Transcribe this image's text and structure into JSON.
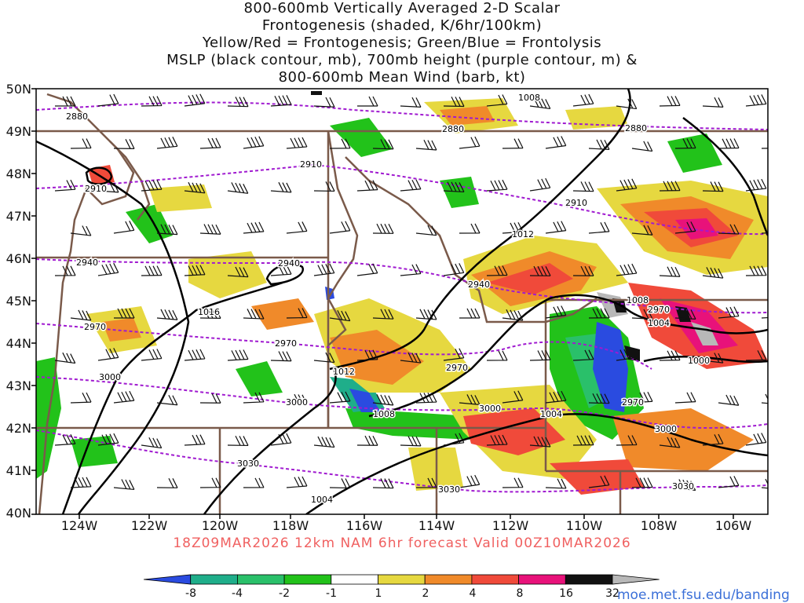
{
  "title_lines": [
    "800-600mb Vertically Averaged 2-D Scalar",
    "Frontogenesis (shaded, K/6hr/100km)",
    "Yellow/Red = Frontogenesis;  Green/Blue = Frontolysis",
    "MSLP (black contour, mb), 700mb height (purple contour, m) &",
    "800-600mb Mean Wind (barb, kt)"
  ],
  "lat_labels": [
    "50N",
    "49N",
    "48N",
    "47N",
    "46N",
    "45N",
    "44N",
    "43N",
    "42N",
    "41N",
    "40N"
  ],
  "lon_labels": [
    "124W",
    "122W",
    "120W",
    "118W",
    "116W",
    "114W",
    "112W",
    "110W",
    "108W",
    "106W"
  ],
  "footer": "18Z09MAR2026 12km NAM 6hr forecast Valid 00Z10MAR2026",
  "colorbar": {
    "labels": [
      "-8",
      "-4",
      "-2",
      "-1",
      "1",
      "2",
      "4",
      "8",
      "16",
      "32"
    ],
    "colors": [
      "#2a4be0",
      "#1fae8a",
      "#2ac06a",
      "#22c21a",
      "#ffffff",
      "#e6d840",
      "#f08a2a",
      "#f04a3a",
      "#e8127a",
      "#111111",
      "#b8b8b8"
    ]
  },
  "height_contour_labels": [
    "2880",
    "2880",
    "2880",
    "2910",
    "2910",
    "2910",
    "2940",
    "2940",
    "2940",
    "2970",
    "2970",
    "2970",
    "2970",
    "2970",
    "3000",
    "3000",
    "3000",
    "3000",
    "3030",
    "3030",
    "3030"
  ],
  "pressure_contour_labels": [
    "1008",
    "1012",
    "1016",
    "1012",
    "1008",
    "1008",
    "1004",
    "1004",
    "1000",
    "1004"
  ],
  "url": "moe.met.fsu.edu/banding",
  "map_colors": {
    "state_lines": "#7a5a4a",
    "pressure": "#000000",
    "height": "#a01ad0",
    "barbs": "#111111"
  }
}
